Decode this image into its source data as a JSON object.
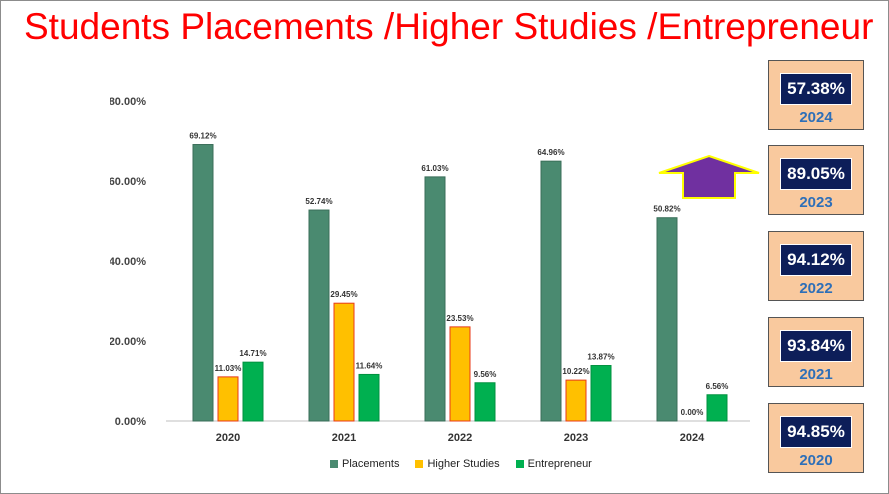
{
  "title": "Students Placements /Higher Studies /Entrepreneur",
  "colors": {
    "title": "#ff0000",
    "placements": "#4a8a70",
    "higher_studies": "#ffc000",
    "higher_studies_border": "#e83a1a",
    "entrepreneur": "#00b050",
    "card_bg": "#f9c99e",
    "card_pct_bg": "#0d1e59",
    "card_year": "#2e6fb8",
    "arrow_fill": "#7030a0",
    "arrow_border": "#ffff00"
  },
  "chart_data": {
    "type": "bar",
    "categories": [
      "2020",
      "2021",
      "2022",
      "2023",
      "2024"
    ],
    "series": [
      {
        "name": "Placements",
        "values": [
          69.12,
          52.74,
          61.03,
          64.96,
          50.82
        ],
        "labels": [
          "69.12%",
          "52.74%",
          "61.03%",
          "64.96%",
          "50.82%"
        ]
      },
      {
        "name": "Higher Studies",
        "values": [
          11.03,
          29.45,
          23.53,
          10.22,
          0.0
        ],
        "labels": [
          "11.03%",
          "29.45%",
          "23.53%",
          "10.22%",
          "0.00%"
        ]
      },
      {
        "name": "Entrepreneur",
        "values": [
          14.71,
          11.64,
          9.56,
          13.87,
          6.56
        ],
        "labels": [
          "14.71%",
          "11.64%",
          "9.56%",
          "13.87%",
          "6.56%"
        ]
      }
    ],
    "ylim": [
      0,
      80
    ],
    "yticks": [
      "0.00%",
      "20.00%",
      "40.00%",
      "60.00%",
      "80.00%"
    ],
    "ytick_values": [
      0,
      20,
      40,
      60,
      80
    ],
    "grid": false,
    "legend": "bottom"
  },
  "cards": [
    {
      "pct": "57.38%",
      "year": "2024"
    },
    {
      "pct": "89.05%",
      "year": "2023"
    },
    {
      "pct": "94.12%",
      "year": "2022"
    },
    {
      "pct": "93.84%",
      "year": "2021"
    },
    {
      "pct": "94.85%",
      "year": "2020"
    }
  ],
  "arrow_icon": "up-arrow-icon"
}
